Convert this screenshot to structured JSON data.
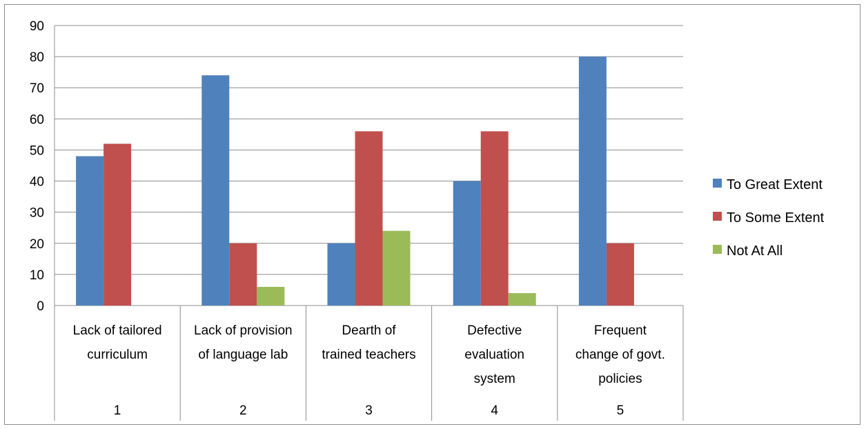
{
  "chart_data": {
    "type": "bar",
    "title": "",
    "xlabel": "",
    "ylabel": "",
    "ylim": [
      0,
      90
    ],
    "yticks": [
      0,
      10,
      20,
      30,
      40,
      50,
      60,
      70,
      80,
      90
    ],
    "grid": true,
    "legend_position": "right",
    "categories": [
      {
        "number": "1",
        "label_lines": [
          "Lack of  tailored",
          "curriculum"
        ]
      },
      {
        "number": "2",
        "label_lines": [
          "Lack of provision",
          "of language lab"
        ]
      },
      {
        "number": "3",
        "label_lines": [
          "Dearth of",
          "trained teachers"
        ]
      },
      {
        "number": "4",
        "label_lines": [
          "Defective",
          "evaluation",
          "system"
        ]
      },
      {
        "number": "5",
        "label_lines": [
          "Frequent",
          "change of govt.",
          "policies"
        ]
      }
    ],
    "series": [
      {
        "name": "To Great Extent",
        "color": "#4f81bd",
        "values": [
          48,
          74,
          20,
          40,
          80
        ]
      },
      {
        "name": "To Some Extent",
        "color": "#c0504d",
        "values": [
          52,
          20,
          56,
          56,
          20
        ]
      },
      {
        "name": "Not At All",
        "color": "#9bbb59",
        "values": [
          0,
          6,
          24,
          4,
          0
        ]
      }
    ]
  }
}
